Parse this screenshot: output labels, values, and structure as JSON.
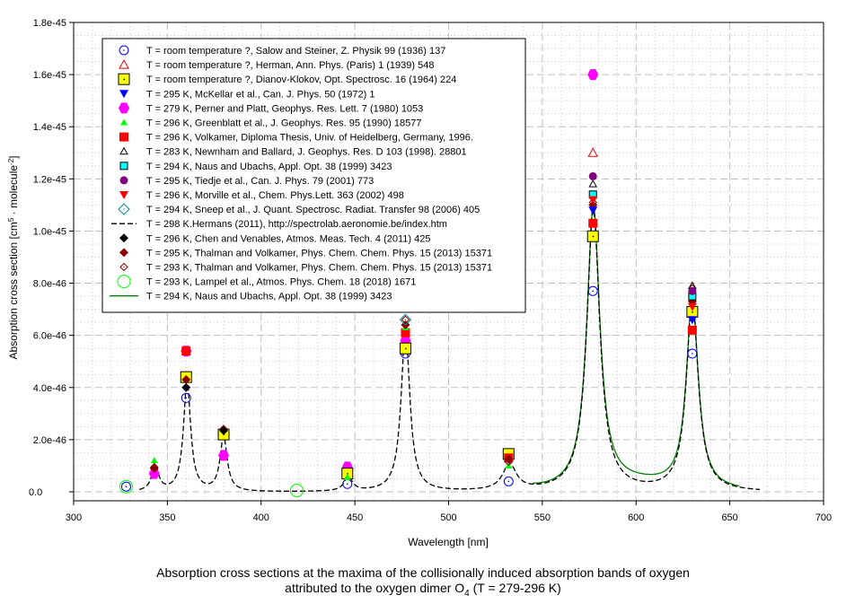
{
  "chart_data": {
    "type": "scatter",
    "title": "",
    "xlabel": "Wavelength [nm]",
    "ylabel_parts": [
      "Absorption cross section [cm",
      "5",
      " · molecule",
      "-2",
      "]"
    ],
    "xlim": [
      300,
      700
    ],
    "ylim": [
      0,
      1.8e-45
    ],
    "grid": true,
    "x_ticks": [
      300,
      350,
      400,
      450,
      500,
      550,
      600,
      650,
      700
    ],
    "y_ticks": [
      {
        "v": 0,
        "label": "0.0"
      },
      {
        "v": 2e-46,
        "label": "2.0e-46"
      },
      {
        "v": 4e-46,
        "label": "4.0e-46"
      },
      {
        "v": 6e-46,
        "label": "6.0e-46"
      },
      {
        "v": 8e-46,
        "label": "8.0e-46"
      },
      {
        "v": 1e-45,
        "label": "1.0e-45"
      },
      {
        "v": 1.2e-45,
        "label": "1.2e-45"
      },
      {
        "v": 1.4e-45,
        "label": "1.4e-45"
      },
      {
        "v": 1.6e-45,
        "label": "1.6e-45"
      },
      {
        "v": 1.8e-45,
        "label": "1.8e-45"
      }
    ],
    "legend_position": "top-left",
    "series": [
      {
        "name": "T = room temperature ?, Salow and Steiner, Z. Physik 99 (1936) 137",
        "marker": "circle-dot-open",
        "color": "#0000ff",
        "points": [
          [
            328,
            2e-47
          ],
          [
            360,
            3.6e-46
          ],
          [
            446,
            3e-47
          ],
          [
            477,
            5.3e-46
          ],
          [
            532,
            4e-47
          ],
          [
            577,
            7.7e-46
          ],
          [
            630,
            5.3e-46
          ]
        ]
      },
      {
        "name": "T = room temperature ?, Herman, Ann. Phys. (Paris) 1 (1939) 548",
        "marker": "triangle-open",
        "color": "#ff0000",
        "points": [
          [
            577,
            1.3e-45
          ]
        ]
      },
      {
        "name": "T = room temperature ?, Dianov-Klokov, Opt. Spectrosc. 16 (1964) 224",
        "marker": "square-yellow",
        "color": "#ffff00",
        "points": [
          [
            360,
            4.4e-46
          ],
          [
            380,
            2.2e-46
          ],
          [
            446,
            7e-47
          ],
          [
            477,
            5.5e-46
          ],
          [
            532,
            1.45e-46
          ],
          [
            577,
            9.8e-46
          ],
          [
            630,
            6.9e-46
          ]
        ]
      },
      {
        "name": "T = 295 K, McKellar et al., Can. J. Phys. 50 (1972) 1",
        "marker": "triangle-down",
        "color": "#0000ff",
        "points": [
          [
            577,
            1.08e-45
          ],
          [
            630,
            6.6e-46
          ]
        ]
      },
      {
        "name": "T = 279 K, Perner and Platt, Geophys. Res. Lett. 7 (1980) 1053",
        "marker": "hexagon",
        "color": "#ff00ff",
        "points": [
          [
            343,
            7e-47
          ],
          [
            360,
            5.4e-46
          ],
          [
            380,
            1.4e-46
          ],
          [
            446,
            9.5e-47
          ],
          [
            477,
            5.8e-46
          ],
          [
            577,
            1.6e-45
          ]
        ]
      },
      {
        "name": "T = 296 K, Greenblatt et al., J. Geophys. Res. 95 (1990) 18577",
        "marker": "triangle-small",
        "color": "#00ff00",
        "points": [
          [
            343,
            1.2e-46
          ],
          [
            446,
            5.5e-47
          ],
          [
            477,
            6.3e-46
          ],
          [
            532,
            1e-46
          ]
        ]
      },
      {
        "name": "T = 296 K, Volkamer, Diploma Thesis, Univ. of Heidelberg, Germany, 1996.",
        "marker": "square",
        "color": "#ff0000",
        "points": [
          [
            360,
            5.4e-46
          ],
          [
            477,
            6.1e-46
          ],
          [
            532,
            1.3e-46
          ],
          [
            577,
            1.03e-45
          ],
          [
            630,
            6.2e-46
          ]
        ]
      },
      {
        "name": "T = 283 K, Newnham and Ballard, J. Geophys. Res. D 103 (1998). 28801",
        "marker": "triangle-open-small",
        "color": "#000000",
        "points": [
          [
            577,
            1.18e-45
          ],
          [
            630,
            7.9e-46
          ]
        ]
      },
      {
        "name": "T = 294 K, Naus and Ubachs, Appl. Opt. 38 (1999) 3423",
        "marker": "square-cyan",
        "color": "#00ffff",
        "points": [
          [
            577,
            1.14e-45
          ],
          [
            630,
            7.5e-46
          ]
        ]
      },
      {
        "name": "T = 295 K, Tiedje et al., Can. J. Phys. 79 (2001) 773",
        "marker": "octagon",
        "color": "#800080",
        "points": [
          [
            577,
            1.21e-45
          ],
          [
            630,
            7.7e-46
          ]
        ]
      },
      {
        "name": "T = 296 K, Morville et al., Chem. Phys.Lett. 363 (2002) 498",
        "marker": "triangle-down",
        "color": "#ff0000",
        "points": [
          [
            577,
            1.12e-45
          ],
          [
            630,
            7.1e-46
          ]
        ]
      },
      {
        "name": "T = 294 K, Sneep et al., J. Quant. Spectrosc. Radiat. Transfer 98 (2006) 405",
        "marker": "diamond-open",
        "color": "#008b8b",
        "points": [
          [
            477,
            6.6e-46
          ]
        ]
      },
      {
        "name": "T = 298 K.Hermans (2011), http://spectrolab.aeronomie.be/index.htm",
        "marker": "line-dashed",
        "color": "#000000",
        "points": []
      },
      {
        "name": "T = 296 K, Chen and Venables, Atmos. Meas. Tech. 4 (2011) 425",
        "marker": "diamond",
        "color": "#000000",
        "points": [
          [
            360,
            4e-46
          ],
          [
            380,
            2.35e-46
          ]
        ]
      },
      {
        "name": "T = 295 K, Thalman and Volkamer, Phys. Chem. Chem. Phys. 15 (2013) 15371",
        "marker": "diamond",
        "color": "#8b0000",
        "points": [
          [
            343,
            9e-47
          ],
          [
            360,
            4.3e-46
          ],
          [
            380,
            2.4e-46
          ],
          [
            477,
            6.4e-46
          ],
          [
            532,
            1.25e-46
          ],
          [
            577,
            1.1e-45
          ],
          [
            630,
            7.3e-46
          ]
        ]
      },
      {
        "name": "T = 293 K, Thalman and Volkamer, Phys. Chem. Chem. Phys. 15 (2013) 15371",
        "marker": "diamond-dot-open",
        "color": "#8b0000",
        "points": [
          [
            343,
            9.5e-47
          ],
          [
            477,
            6.6e-46
          ],
          [
            532,
            1.15e-46
          ],
          [
            577,
            1.11e-45
          ],
          [
            630,
            7.8e-46
          ]
        ]
      },
      {
        "name": "T = 293 K, Lampel et al., Atmos. Phys. Chem. 18 (2018) 1671",
        "marker": "circle-open-large",
        "color": "#00ff00",
        "points": [
          [
            328,
            2e-47
          ],
          [
            419,
            5e-48
          ]
        ]
      },
      {
        "name": "T = 294 K, Naus and Ubachs, Appl. Opt. 38 (1999) 3423",
        "marker": "line-solid",
        "color": "#008000",
        "points": []
      }
    ],
    "spectra": {
      "hermans_peaks": [
        {
          "center": 343.5,
          "height": 9.5e-47,
          "width": 2.6
        },
        {
          "center": 360.5,
          "height": 4.25e-46,
          "width": 2.6
        },
        {
          "center": 380.0,
          "height": 2.1e-46,
          "width": 2.6
        },
        {
          "center": 446.5,
          "height": 5.5e-47,
          "width": 3.0
        },
        {
          "center": 477.0,
          "height": 6.2e-46,
          "width": 3.2
        },
        {
          "center": 532.5,
          "height": 1e-46,
          "width": 5.0
        },
        {
          "center": 577.2,
          "height": 1.08e-45,
          "width": 4.8
        },
        {
          "center": 630.0,
          "height": 7.3e-46,
          "width": 4.4
        }
      ],
      "hermans_range": [
        335,
        666
      ],
      "naus_range": [
        545,
        655
      ],
      "naus_baseline_offset": 2.5e-47
    }
  },
  "caption": {
    "line1": "Absorption cross sections at the maxima of the collisionally induced absorption bands of oxygen",
    "line2_pre": "attributed to the oxygen dimer O",
    "line2_sub": "4",
    "line2_post": " (T = 279-296 K)"
  }
}
